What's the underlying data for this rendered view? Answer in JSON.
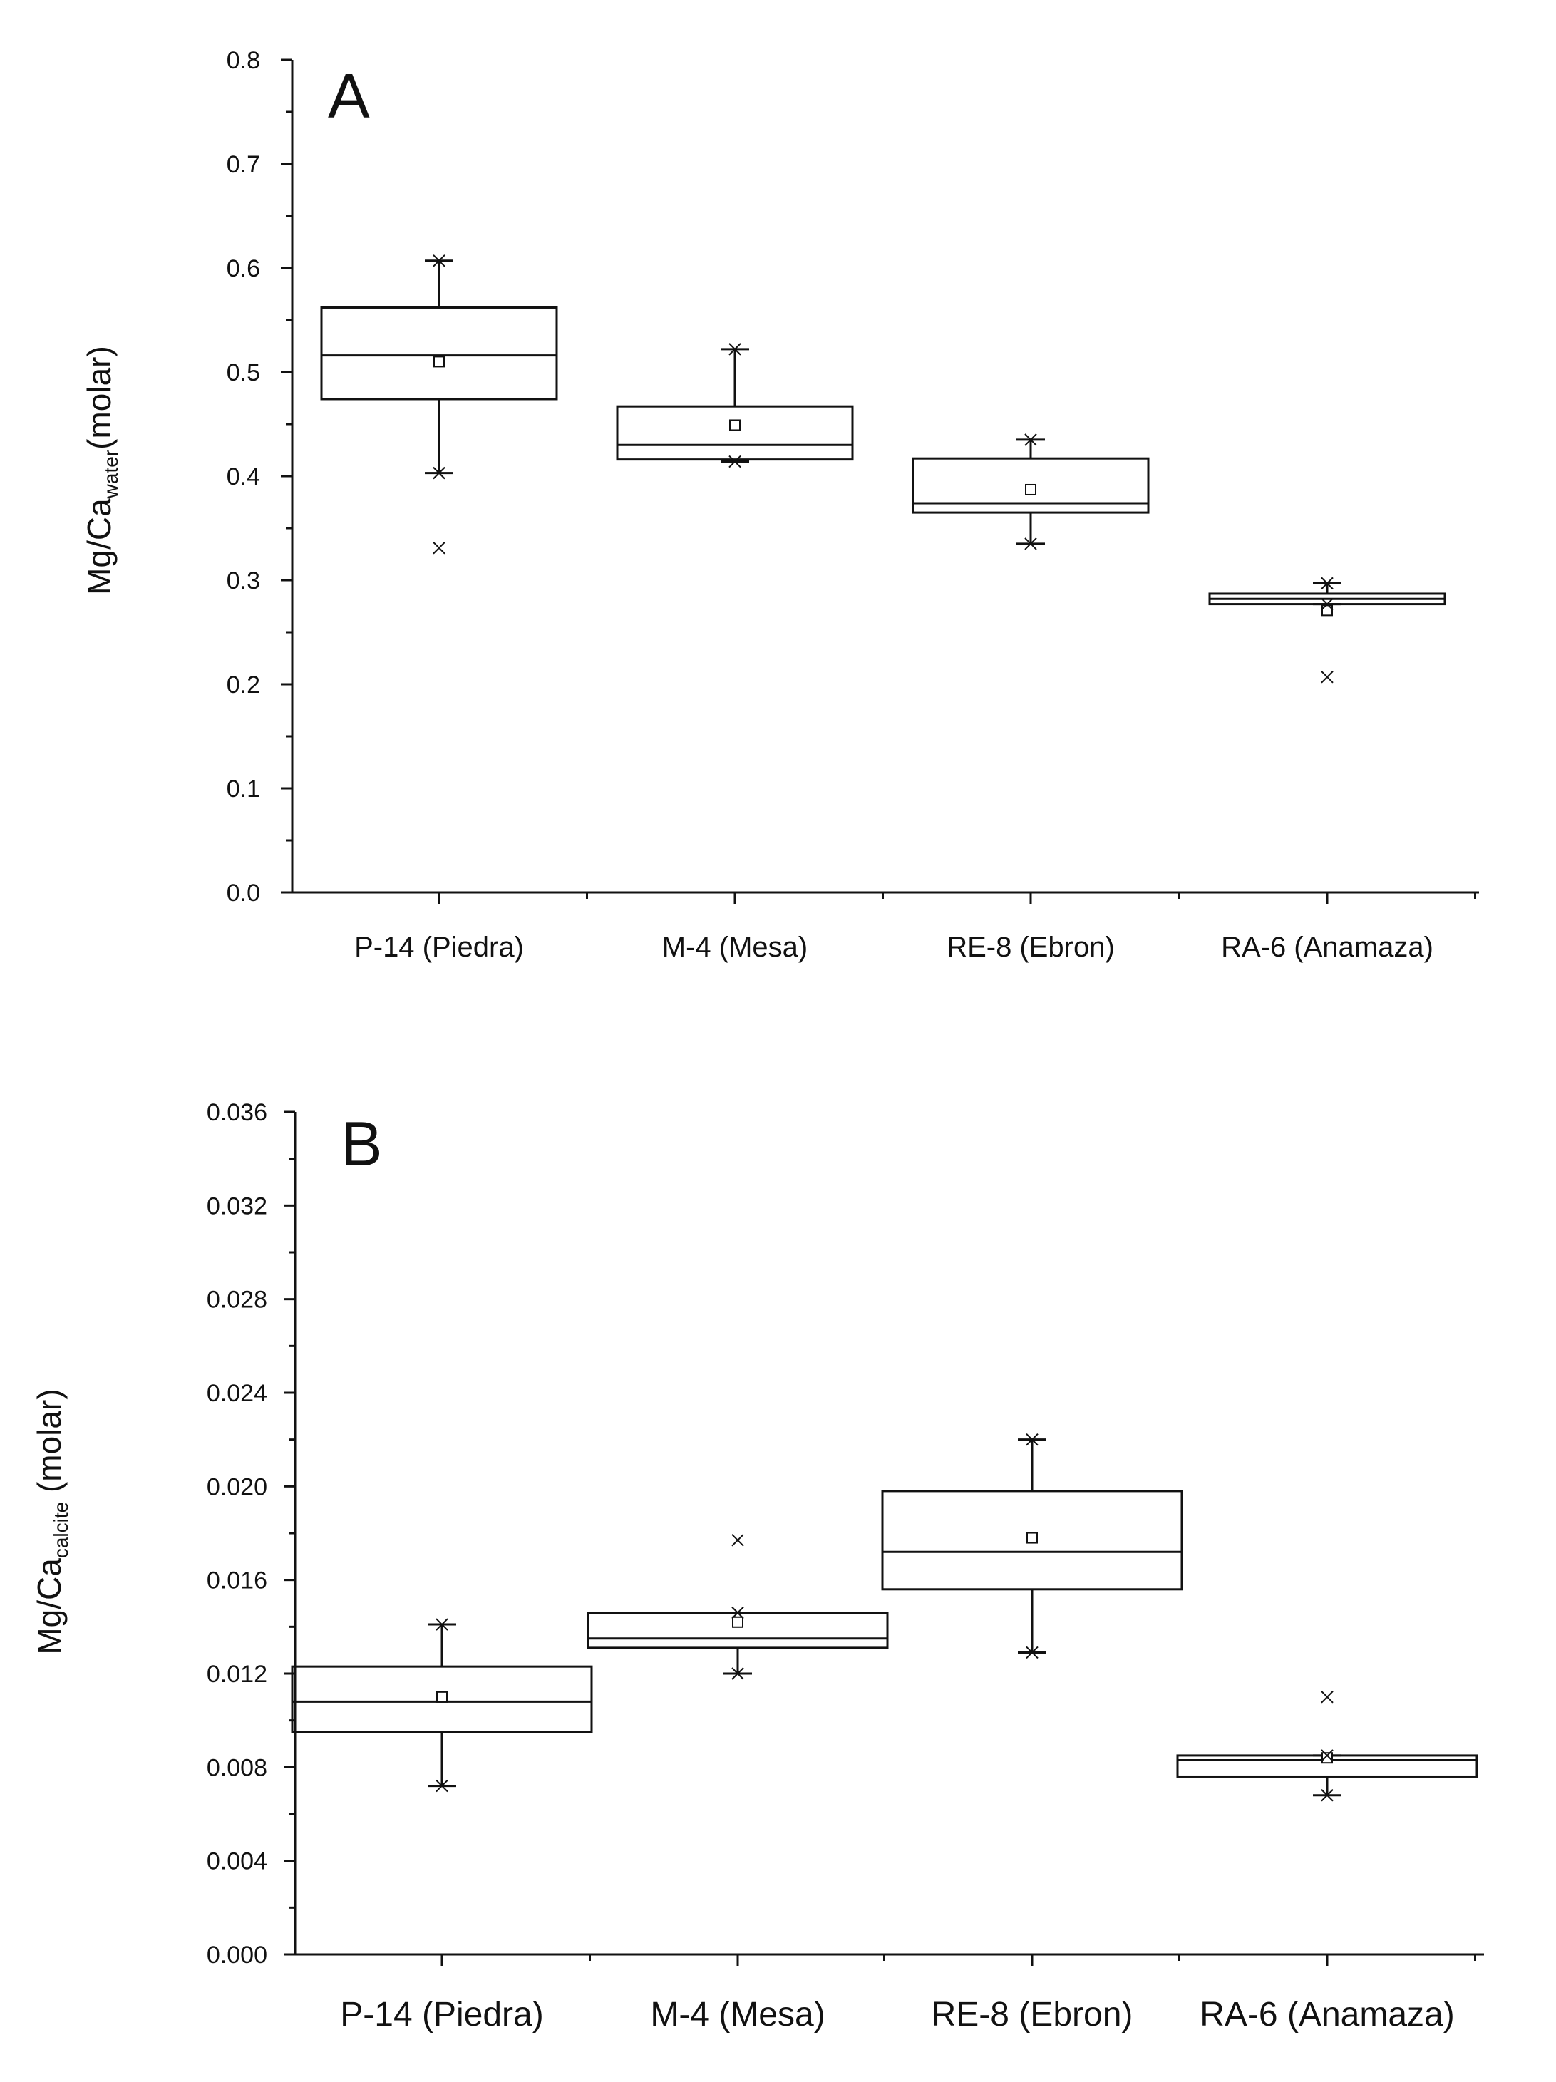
{
  "chart_data": [
    {
      "panel": "A",
      "type": "box",
      "ylabel_main": "Mg/Ca",
      "ylabel_sub": "water",
      "ylabel_tail": "(molar)",
      "ylim": [
        0,
        0.8
      ],
      "yticks": [
        "0.0",
        "0.1",
        "0.2",
        "0.3",
        "0.4",
        "0.5",
        "0.6",
        "0.7",
        "0.8"
      ],
      "categories": [
        "P-14 (Piedra)",
        "M-4 (Mesa)",
        "RE-8 (Ebron)",
        "RA-6 (Anamaza)"
      ],
      "boxes": [
        {
          "q1": 0.474,
          "median": 0.516,
          "q3": 0.562,
          "mean": 0.51,
          "whisker_low": 0.403,
          "whisker_high": 0.607,
          "min": 0.403,
          "max": 0.607,
          "outliers": [
            0.331
          ]
        },
        {
          "q1": 0.416,
          "median": 0.43,
          "q3": 0.467,
          "mean": 0.449,
          "whisker_low": 0.414,
          "whisker_high": 0.522,
          "min": 0.414,
          "max": 0.522,
          "outliers": []
        },
        {
          "q1": 0.365,
          "median": 0.374,
          "q3": 0.417,
          "mean": 0.387,
          "whisker_low": 0.335,
          "whisker_high": 0.435,
          "min": 0.335,
          "max": 0.435,
          "outliers": []
        },
        {
          "q1": 0.277,
          "median": 0.282,
          "q3": 0.287,
          "mean": 0.271,
          "whisker_low": 0.277,
          "whisker_high": 0.297,
          "min": 0.277,
          "max": 0.297,
          "outliers": [
            0.207
          ]
        }
      ]
    },
    {
      "panel": "B",
      "type": "box",
      "ylabel_main": "Mg/Ca",
      "ylabel_sub": "calcite",
      "ylabel_tail": " (molar)",
      "ylim": [
        0,
        0.036
      ],
      "yticks": [
        "0.000",
        "0.004",
        "0.008",
        "0.012",
        "0.016",
        "0.020",
        "0.024",
        "0.028",
        "0.032",
        "0.036"
      ],
      "categories": [
        "P-14 (Piedra)",
        "M-4 (Mesa)",
        "RE-8 (Ebron)",
        "RA-6 (Anamaza)"
      ],
      "boxes": [
        {
          "q1": 0.0095,
          "median": 0.0108,
          "q3": 0.0123,
          "mean": 0.011,
          "whisker_low": 0.0072,
          "whisker_high": 0.0141,
          "min": 0.0072,
          "max": 0.0141,
          "outliers": []
        },
        {
          "q1": 0.0131,
          "median": 0.0135,
          "q3": 0.0146,
          "mean": 0.0142,
          "whisker_low": 0.012,
          "whisker_high": 0.0146,
          "min": 0.012,
          "max": 0.0146,
          "outliers": [
            0.0177
          ]
        },
        {
          "q1": 0.0156,
          "median": 0.0172,
          "q3": 0.0198,
          "mean": 0.0178,
          "whisker_low": 0.0129,
          "whisker_high": 0.022,
          "min": 0.0129,
          "max": 0.022,
          "outliers": []
        },
        {
          "q1": 0.0076,
          "median": 0.0083,
          "q3": 0.0085,
          "mean": 0.0084,
          "whisker_low": 0.0068,
          "whisker_high": 0.0085,
          "min": 0.0068,
          "max": 0.0085,
          "outliers": [
            0.011
          ]
        }
      ]
    }
  ]
}
